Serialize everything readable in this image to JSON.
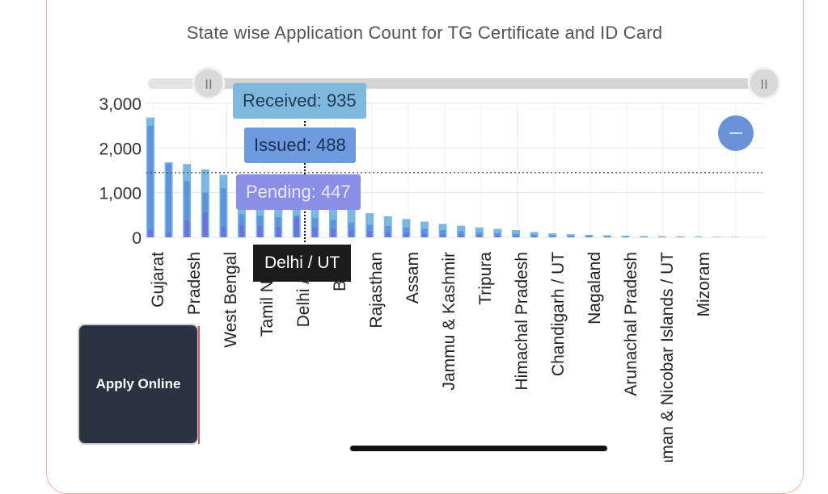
{
  "chart_data": {
    "type": "bar",
    "title": "State wise Application Count for TG Certificate and ID Card",
    "ylim": [
      0,
      3000
    ],
    "yticks": [
      "0",
      "1,000",
      "2,000",
      "3,000"
    ],
    "xlabels": [
      {
        "label": "Gujarat",
        "idx": 1
      },
      {
        "label": "Pradesh",
        "idx": 3
      },
      {
        "label": "West Bengal",
        "idx": 5
      },
      {
        "label": "Tamil Nadu",
        "idx": 7
      },
      {
        "label": "Delhi / UT",
        "idx": 9
      },
      {
        "label": "Bihar",
        "idx": 11
      },
      {
        "label": "Rajasthan",
        "idx": 13
      },
      {
        "label": "Assam",
        "idx": 15
      },
      {
        "label": "Jammu & Kashmir",
        "idx": 17
      },
      {
        "label": "Tripura",
        "idx": 19
      },
      {
        "label": "Himachal Pradesh",
        "idx": 21
      },
      {
        "label": "Chandigarh / UT",
        "idx": 23
      },
      {
        "label": "Nagaland",
        "idx": 25
      },
      {
        "label": "Arunachal Pradesh",
        "idx": 27
      },
      {
        "label": "Andaman & Nicobar Islands / UT",
        "idx": 29
      },
      {
        "label": "Mizoram",
        "idx": 31
      }
    ],
    "series": [
      {
        "name": "Received",
        "color": "#73b3e0",
        "values": [
          2680,
          1680,
          1640,
          1520,
          1400,
          1290,
          1180,
          1060,
          935,
          880,
          760,
          650,
          540,
          470,
          410,
          350,
          300,
          260,
          220,
          190,
          160,
          120,
          90,
          70,
          55,
          45,
          35,
          28,
          22,
          18,
          14,
          10,
          6
        ]
      },
      {
        "name": "Issued",
        "color": "#5a8edb",
        "values": [
          2500,
          1650,
          1260,
          1000,
          1100,
          520,
          480,
          450,
          488,
          430,
          390,
          330,
          280,
          250,
          220,
          190,
          160,
          140,
          110,
          95,
          80,
          60,
          45,
          35,
          28,
          22,
          18,
          14,
          11,
          9,
          7,
          5,
          3
        ]
      },
      {
        "name": "Pending",
        "color": "#6f6fe0",
        "values": [
          180,
          100,
          380,
          560,
          240,
          270,
          250,
          230,
          447,
          220,
          190,
          160,
          130,
          110,
          95,
          80,
          70,
          60,
          50,
          40,
          30,
          25,
          20,
          15,
          12,
          10,
          8,
          6,
          5,
          4,
          3,
          2,
          1
        ]
      }
    ],
    "average_line": 1450,
    "hovered_category": "Delhi / UT",
    "hovered_index": 9
  },
  "tooltip": {
    "received": "Received: 935",
    "issued": "Issued: 488",
    "pending": "Pending: 447",
    "state": "Delhi / UT"
  },
  "apply_button": {
    "label": "Apply Online"
  },
  "slider_handle_glyph": "II"
}
